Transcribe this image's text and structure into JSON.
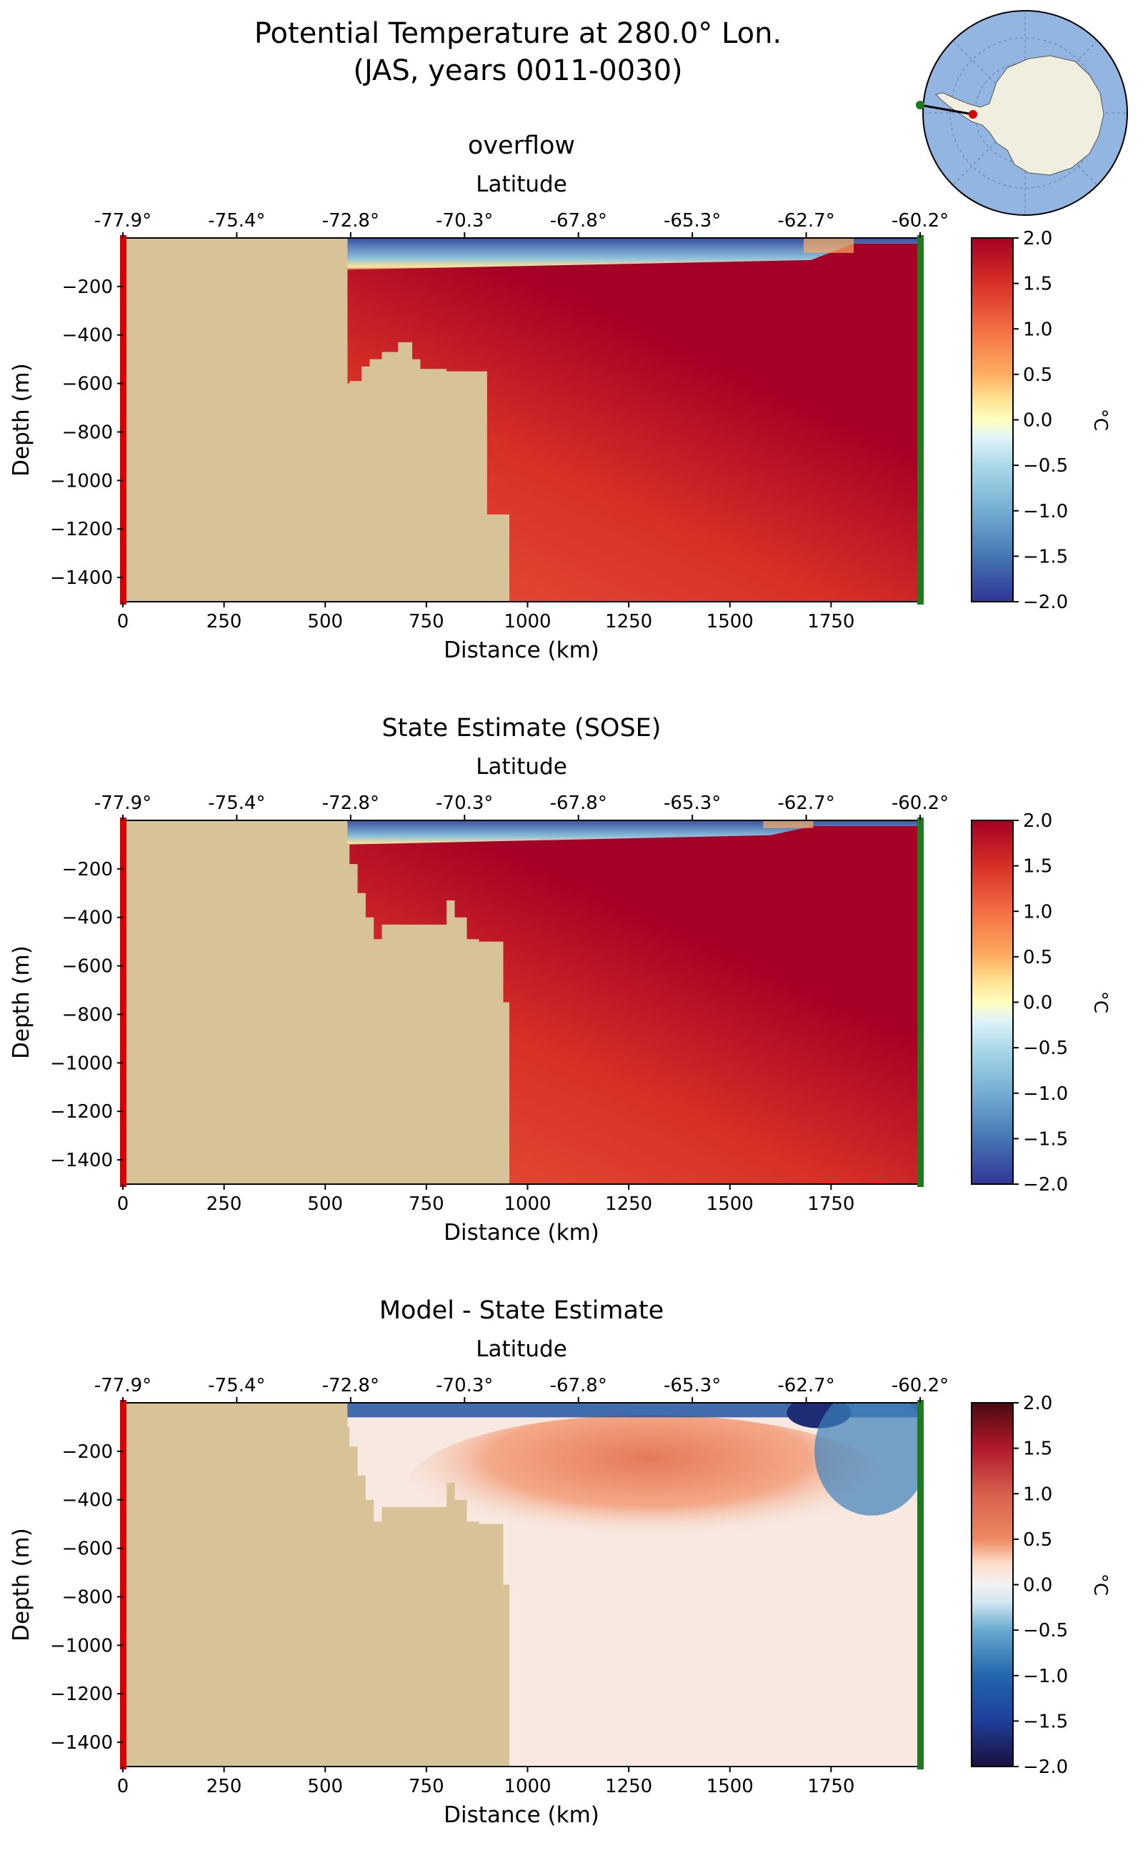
{
  "figure": {
    "title_line1": "Potential Temperature at 280.0° Lon.",
    "title_line2": "(JAS, years 0011-0030)"
  },
  "colors": {
    "land": "#d8c298",
    "start_marker": "#d40000",
    "end_marker": "#1f7a1f",
    "map_ocean": "#93b5e2",
    "map_land": "#f0eedf"
  },
  "inset_map": {
    "projection": "south polar stereographic",
    "section_start": {
      "lat": -77.9,
      "lon": 280.0
    },
    "section_end": {
      "lat": -60.2,
      "lon": 280.0
    }
  },
  "chart_data": [
    {
      "type": "heatmap",
      "title": "overflow",
      "xlabel": "Distance (km)",
      "ylabel": "Depth (m)",
      "top_xlabel": "Latitude",
      "xlim": [
        0,
        1970
      ],
      "ylim": [
        -1500,
        0
      ],
      "xticks": [
        0,
        250,
        500,
        750,
        1000,
        1250,
        1500,
        1750
      ],
      "yticks": [
        -200,
        -400,
        -600,
        -800,
        -1000,
        -1200,
        -1400
      ],
      "lat_ticks": [
        "-77.9°",
        "-75.4°",
        "-72.8°",
        "-70.3°",
        "-67.8°",
        "-65.3°",
        "-62.7°",
        "-60.2°"
      ],
      "colorbar": {
        "label": "°C",
        "cmap": "RdYlBu_r",
        "range": [
          -2.0,
          2.0
        ],
        "ticks": [
          2.0,
          1.5,
          1.0,
          0.5,
          0.0,
          -0.5,
          -1.0,
          -1.5,
          -2.0
        ]
      },
      "bathymetry": [
        [
          0,
          -1500
        ],
        [
          555,
          0
        ],
        [
          560,
          -600
        ],
        [
          590,
          -590
        ],
        [
          610,
          -530
        ],
        [
          640,
          -500
        ],
        [
          680,
          -470
        ],
        [
          715,
          -430
        ],
        [
          735,
          -500
        ],
        [
          760,
          -540
        ],
        [
          800,
          -540
        ],
        [
          820,
          -550
        ],
        [
          860,
          -550
        ],
        [
          900,
          -550
        ],
        [
          940,
          -1140
        ],
        [
          955,
          -1140
        ],
        [
          960,
          -1500
        ]
      ],
      "temperature_field": {
        "surface_layer": {
          "depth_range_m": [
            0,
            -150
          ],
          "value_degC": -1.8,
          "warms_to_degC": 0.5,
          "east_of_km": 1700
        },
        "deep_max_degC": 2.0,
        "deep_min_degC": 1.0
      }
    },
    {
      "type": "heatmap",
      "title": "State Estimate (SOSE)",
      "xlabel": "Distance (km)",
      "ylabel": "Depth (m)",
      "top_xlabel": "Latitude",
      "xlim": [
        0,
        1970
      ],
      "ylim": [
        -1500,
        0
      ],
      "xticks": [
        0,
        250,
        500,
        750,
        1000,
        1250,
        1500,
        1750
      ],
      "yticks": [
        -200,
        -400,
        -600,
        -800,
        -1000,
        -1200,
        -1400
      ],
      "lat_ticks": [
        "-77.9°",
        "-75.4°",
        "-72.8°",
        "-70.3°",
        "-67.8°",
        "-65.3°",
        "-62.7°",
        "-60.2°"
      ],
      "colorbar": {
        "label": "°C",
        "cmap": "RdYlBu_r",
        "range": [
          -2.0,
          2.0
        ],
        "ticks": [
          2.0,
          1.5,
          1.0,
          0.5,
          0.0,
          -0.5,
          -1.0,
          -1.5,
          -2.0
        ]
      },
      "bathymetry": [
        [
          0,
          -1500
        ],
        [
          555,
          0
        ],
        [
          560,
          -100
        ],
        [
          580,
          -180
        ],
        [
          600,
          -300
        ],
        [
          620,
          -400
        ],
        [
          640,
          -490
        ],
        [
          700,
          -430
        ],
        [
          800,
          -430
        ],
        [
          820,
          -330
        ],
        [
          850,
          -400
        ],
        [
          880,
          -490
        ],
        [
          940,
          -500
        ],
        [
          955,
          -750
        ],
        [
          965,
          -1500
        ]
      ],
      "temperature_field": {
        "surface_layer": {
          "depth_range_m": [
            0,
            -120
          ],
          "value_degC": -1.8,
          "warms_to_degC": 0.5,
          "east_of_km": 1600
        },
        "deep_max_degC": 2.0,
        "deep_min_degC": 1.0
      }
    },
    {
      "type": "heatmap",
      "title": "Model - State Estimate",
      "xlabel": "Distance (km)",
      "ylabel": "Depth (m)",
      "top_xlabel": "Latitude",
      "xlim": [
        0,
        1970
      ],
      "ylim": [
        -1500,
        0
      ],
      "xticks": [
        0,
        250,
        500,
        750,
        1000,
        1250,
        1500,
        1750
      ],
      "yticks": [
        -200,
        -400,
        -600,
        -800,
        -1000,
        -1200,
        -1400
      ],
      "lat_ticks": [
        "-77.9°",
        "-75.4°",
        "-72.8°",
        "-70.3°",
        "-67.8°",
        "-65.3°",
        "-62.7°",
        "-60.2°"
      ],
      "colorbar": {
        "label": "°C",
        "cmap": "RdBu_r",
        "range": [
          -2.0,
          2.0
        ],
        "ticks": [
          2.0,
          1.5,
          1.0,
          0.5,
          0.0,
          -0.5,
          -1.0,
          -1.5,
          -2.0
        ]
      },
      "bathymetry": [
        [
          0,
          -1500
        ],
        [
          555,
          0
        ],
        [
          560,
          -100
        ],
        [
          580,
          -180
        ],
        [
          600,
          -300
        ],
        [
          620,
          -400
        ],
        [
          640,
          -490
        ],
        [
          700,
          -430
        ],
        [
          800,
          -430
        ],
        [
          820,
          -330
        ],
        [
          850,
          -400
        ],
        [
          880,
          -490
        ],
        [
          940,
          -500
        ],
        [
          955,
          -750
        ],
        [
          965,
          -1500
        ]
      ],
      "difference_field": {
        "surface_layer": {
          "depth_range_m": [
            0,
            -60
          ],
          "value_degC": -1.2
        },
        "subsurface_max_degC": 0.7,
        "deep_value_degC": 0.1
      }
    }
  ]
}
